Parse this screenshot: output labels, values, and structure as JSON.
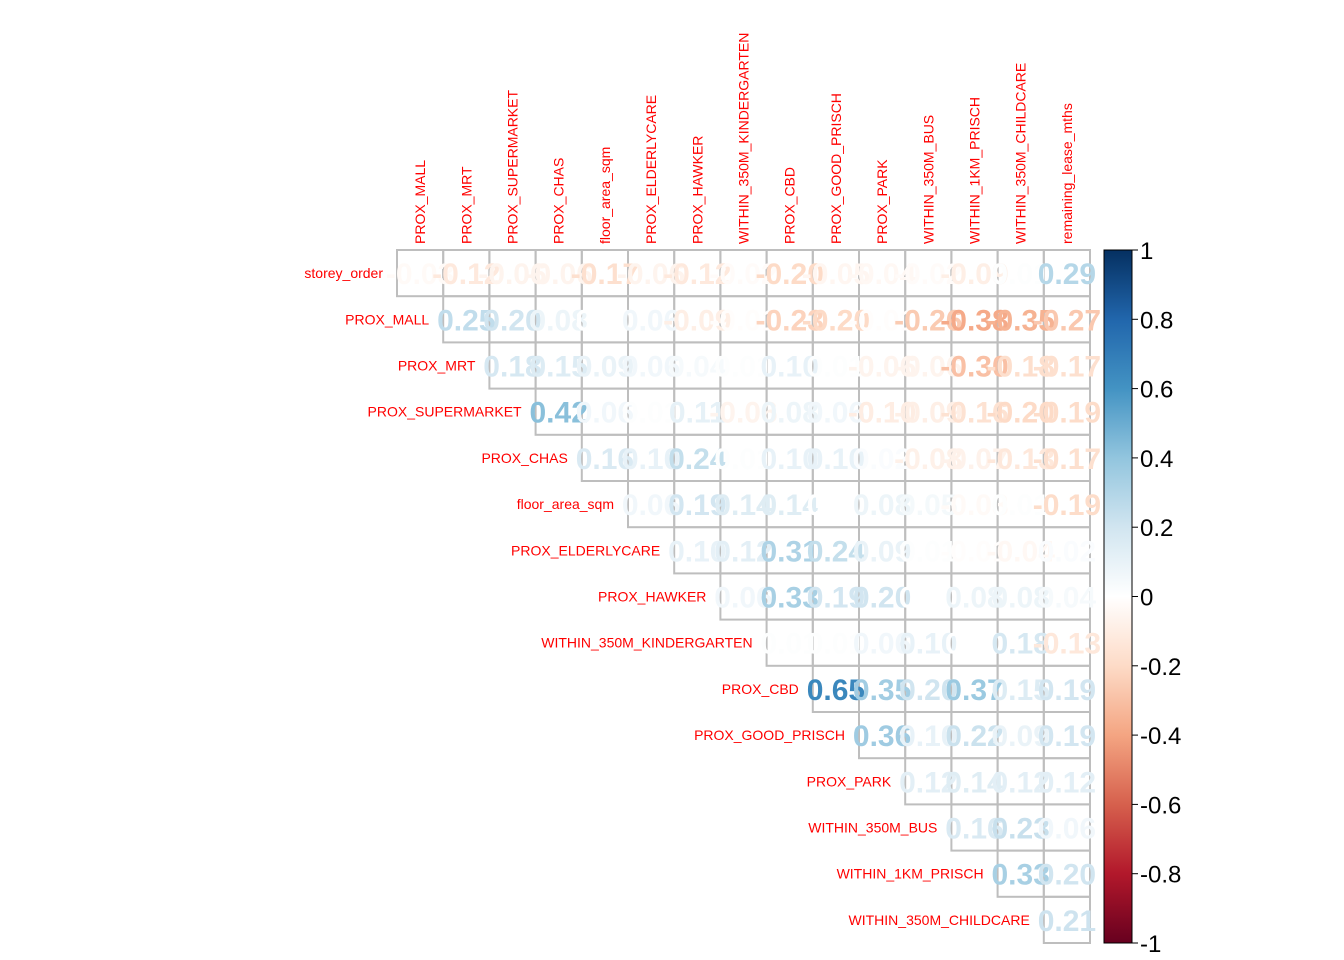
{
  "chart_data": {
    "type": "heatmap",
    "subtype": "correlation-matrix-upper-triangle-numbers",
    "title": "",
    "row_labels": [
      "storey_order",
      "PROX_MALL",
      "PROX_MRT",
      "PROX_SUPERMARKET",
      "PROX_CHAS",
      "floor_area_sqm",
      "PROX_ELDERLYCARE",
      "PROX_HAWKER",
      "WITHIN_350M_KINDERGARTEN",
      "PROX_CBD",
      "PROX_GOOD_PRISCH",
      "PROX_PARK",
      "WITHIN_350M_BUS",
      "WITHIN_1KM_PRISCH",
      "WITHIN_350M_CHILDCARE"
    ],
    "col_labels": [
      "PROX_MALL",
      "PROX_MRT",
      "PROX_SUPERMARKET",
      "PROX_CHAS",
      "floor_area_sqm",
      "PROX_ELDERLYCARE",
      "PROX_HAWKER",
      "WITHIN_350M_KINDERGARTEN",
      "PROX_CBD",
      "PROX_GOOD_PRISCH",
      "PROX_PARK",
      "WITHIN_350M_BUS",
      "WITHIN_1KM_PRISCH",
      "WITHIN_350M_CHILDCARE",
      "remaining_lease_mths"
    ],
    "rows": [
      [
        -0.03,
        -0.12,
        -0.06,
        -0.06,
        -0.17,
        -0.06,
        -0.12,
        -0.02,
        -0.2,
        -0.05,
        -0.04,
        -0.02,
        -0.09,
        0.01,
        0.29
      ],
      [
        0.25,
        0.2,
        0.08,
        -0.0,
        0.06,
        -0.09,
        -0.01,
        -0.23,
        -0.2,
        -0.01,
        -0.26,
        -0.38,
        -0.35,
        -0.27
      ],
      [
        0.18,
        0.15,
        0.09,
        0.06,
        0.04,
        0.01,
        0.1,
        0.01,
        -0.06,
        -0.06,
        -0.3,
        -0.18,
        -0.17
      ],
      [
        0.42,
        0.06,
        0.01,
        0.11,
        -0.06,
        0.08,
        0.06,
        -0.1,
        -0.09,
        -0.16,
        -0.2,
        -0.19
      ],
      [
        0.16,
        0.1,
        0.24,
        0.01,
        0.1,
        0.1,
        0.02,
        -0.08,
        -0.07,
        -0.13,
        -0.17
      ],
      [
        0.06,
        0.19,
        0.14,
        0.14,
        0.0,
        0.08,
        0.05,
        -0.03,
        0.01,
        -0.19
      ],
      [
        0.1,
        0.12,
        0.31,
        0.24,
        0.09,
        0.01,
        -0.01,
        -0.04,
        0.02
      ],
      [
        0.06,
        0.33,
        0.19,
        0.2,
        0.0,
        0.08,
        0.08,
        0.04
      ],
      [
        0.01,
        0.01,
        0.06,
        0.1,
        -0.0,
        0.18,
        -0.13
      ],
      [
        0.65,
        0.35,
        0.2,
        0.37,
        0.15,
        0.19
      ],
      [
        0.36,
        0.1,
        0.22,
        0.09,
        0.19
      ],
      [
        0.12,
        0.14,
        0.12,
        0.12
      ],
      [
        0.16,
        0.23,
        0.06
      ],
      [
        0.33,
        0.2
      ],
      [
        0.21
      ]
    ],
    "colorbar": {
      "range": [
        -1,
        1
      ],
      "ticks": [
        "1",
        "0.8",
        "0.6",
        "0.4",
        "0.2",
        "0",
        "-0.2",
        "-0.4",
        "-0.6",
        "-0.8",
        "-1"
      ],
      "position": "right"
    },
    "colors": {
      "label": "#ff0000",
      "grid": "#bebebe",
      "palette": [
        "#67001f",
        "#b2182b",
        "#d6604d",
        "#f4a582",
        "#fddbc7",
        "#ffffff",
        "#d1e5f0",
        "#92c5de",
        "#4393c3",
        "#2166ac",
        "#053061"
      ]
    }
  }
}
